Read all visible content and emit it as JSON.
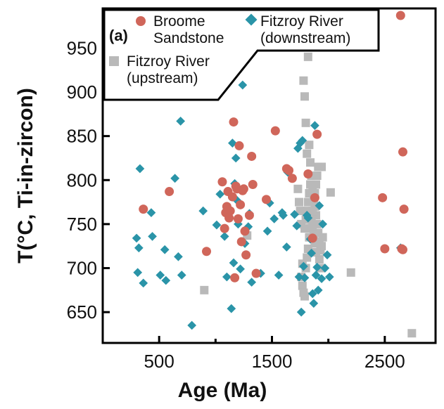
{
  "chart_data": {
    "type": "scatter",
    "panel_label": "(a)",
    "xlabel": "Age (Ma)",
    "ylabel": "T(°C, Ti-in-zircon)",
    "xlim": [
      0,
      2950
    ],
    "ylim": [
      615,
      995
    ],
    "xticks": [
      500,
      1500,
      2500
    ],
    "xminor": [
      1000,
      2000
    ],
    "yticks": [
      650,
      700,
      750,
      800,
      850,
      900,
      950
    ],
    "grid": false,
    "legend_position": "top-left",
    "series": [
      {
        "name": "Broome Sandstone",
        "legend_lines": [
          "Broome",
          "Sandstone"
        ],
        "marker": "circle",
        "color": "#d0665a",
        "points": [
          [
            360,
            767
          ],
          [
            590,
            787
          ],
          [
            920,
            719
          ],
          [
            1060,
            798
          ],
          [
            1080,
            745
          ],
          [
            1090,
            763
          ],
          [
            1100,
            770
          ],
          [
            1110,
            787
          ],
          [
            1120,
            757
          ],
          [
            1130,
            765
          ],
          [
            1150,
            781
          ],
          [
            1160,
            866
          ],
          [
            1170,
            689
          ],
          [
            1180,
            793
          ],
          [
            1190,
            790
          ],
          [
            1200,
            756
          ],
          [
            1210,
            839
          ],
          [
            1220,
            772
          ],
          [
            1230,
            730
          ],
          [
            1240,
            788
          ],
          [
            1250,
            790
          ],
          [
            1260,
            742
          ],
          [
            1270,
            715
          ],
          [
            1300,
            760
          ],
          [
            1320,
            827
          ],
          [
            1330,
            795
          ],
          [
            1360,
            694
          ],
          [
            1450,
            778
          ],
          [
            1530,
            856
          ],
          [
            1630,
            813
          ],
          [
            1650,
            811
          ],
          [
            1680,
            802
          ],
          [
            1820,
            807
          ],
          [
            1860,
            734
          ],
          [
            1880,
            780
          ],
          [
            1900,
            852
          ],
          [
            2480,
            780
          ],
          [
            2500,
            722
          ],
          [
            2640,
            987
          ],
          [
            2650,
            722
          ],
          [
            2660,
            832
          ],
          [
            2670,
            767
          ],
          [
            2660,
            721
          ]
        ]
      },
      {
        "name": "Fitzroy River (downstream)",
        "legend_lines": [
          "Fitzroy River",
          "(downstream)"
        ],
        "marker": "diamond",
        "color": "#2a94a8",
        "points": [
          [
            300,
            734
          ],
          [
            310,
            695
          ],
          [
            320,
            723
          ],
          [
            330,
            813
          ],
          [
            360,
            683
          ],
          [
            430,
            763
          ],
          [
            440,
            736
          ],
          [
            510,
            692
          ],
          [
            550,
            721
          ],
          [
            560,
            686
          ],
          [
            640,
            802
          ],
          [
            670,
            713
          ],
          [
            690,
            867
          ],
          [
            700,
            692
          ],
          [
            790,
            635
          ],
          [
            890,
            765
          ],
          [
            920,
            719
          ],
          [
            1010,
            749
          ],
          [
            1040,
            784
          ],
          [
            1080,
            736
          ],
          [
            1100,
            690
          ],
          [
            1140,
            654
          ],
          [
            1150,
            842
          ],
          [
            1160,
            706
          ],
          [
            1170,
            796
          ],
          [
            1180,
            825
          ],
          [
            1190,
            777
          ],
          [
            1200,
            750
          ],
          [
            1220,
            699
          ],
          [
            1240,
            908
          ],
          [
            1260,
            728
          ],
          [
            1290,
            747
          ],
          [
            1300,
            762
          ],
          [
            1320,
            684
          ],
          [
            1400,
            694
          ],
          [
            1460,
            742
          ],
          [
            1480,
            774
          ],
          [
            1520,
            756
          ],
          [
            1560,
            692
          ],
          [
            1590,
            763
          ],
          [
            1600,
            760
          ],
          [
            1630,
            724
          ],
          [
            1640,
            809
          ],
          [
            1700,
            761
          ],
          [
            1720,
            748
          ],
          [
            1730,
            836
          ],
          [
            1740,
            690
          ],
          [
            1750,
            842
          ],
          [
            1760,
            650
          ],
          [
            1770,
            845
          ],
          [
            1780,
            702
          ],
          [
            1790,
            689
          ],
          [
            1810,
            760
          ],
          [
            1820,
            757
          ],
          [
            1840,
            733
          ],
          [
            1850,
            717
          ],
          [
            1860,
            671
          ],
          [
            1870,
            660
          ],
          [
            1880,
            862
          ],
          [
            1890,
            692
          ],
          [
            1900,
            701
          ],
          [
            1910,
            675
          ],
          [
            1920,
            771
          ],
          [
            1940,
            688
          ],
          [
            1950,
            750
          ],
          [
            1970,
            700
          ],
          [
            1990,
            715
          ],
          [
            2010,
            690
          ],
          [
            2640,
            723
          ]
        ]
      },
      {
        "name": "Fitzroy River (upstream)",
        "legend_lines": [
          "Fitzroy River",
          "(upstream)"
        ],
        "marker": "square",
        "color": "#b9b9b9",
        "points": [
          [
            900,
            675
          ],
          [
            1280,
            737
          ],
          [
            1730,
            790
          ],
          [
            1740,
            775
          ],
          [
            1750,
            765
          ],
          [
            1760,
            750
          ],
          [
            1770,
            705
          ],
          [
            1780,
            913
          ],
          [
            1790,
            895
          ],
          [
            1800,
            865
          ],
          [
            1810,
            830
          ],
          [
            1820,
            940
          ],
          [
            1830,
            840
          ],
          [
            1840,
            820
          ],
          [
            1850,
            805
          ],
          [
            1860,
            790
          ],
          [
            1870,
            780
          ],
          [
            1880,
            770
          ],
          [
            1890,
            760
          ],
          [
            1900,
            750
          ],
          [
            1910,
            740
          ],
          [
            1920,
            730
          ],
          [
            1930,
            720
          ],
          [
            1940,
            815
          ],
          [
            1760,
            690
          ],
          [
            1770,
            680
          ],
          [
            1780,
            672
          ],
          [
            1790,
            668
          ],
          [
            1800,
            700
          ],
          [
            1810,
            712
          ],
          [
            1820,
            722
          ],
          [
            1830,
            735
          ],
          [
            1840,
            745
          ],
          [
            1850,
            755
          ],
          [
            1860,
            765
          ],
          [
            1870,
            775
          ],
          [
            1880,
            785
          ],
          [
            1890,
            795
          ],
          [
            1900,
            805
          ],
          [
            1910,
            815
          ],
          [
            1920,
            710
          ],
          [
            1930,
            700
          ],
          [
            1940,
            725
          ],
          [
            1950,
            735
          ],
          [
            1790,
            745
          ],
          [
            1800,
            755
          ],
          [
            1810,
            765
          ],
          [
            1820,
            775
          ],
          [
            1830,
            785
          ],
          [
            1840,
            795
          ],
          [
            1850,
            805
          ],
          [
            1860,
            748
          ],
          [
            1870,
            738
          ],
          [
            1880,
            728
          ],
          [
            1890,
            718
          ],
          [
            2020,
            786
          ],
          [
            2200,
            695
          ],
          [
            2740,
            626
          ]
        ]
      }
    ]
  }
}
